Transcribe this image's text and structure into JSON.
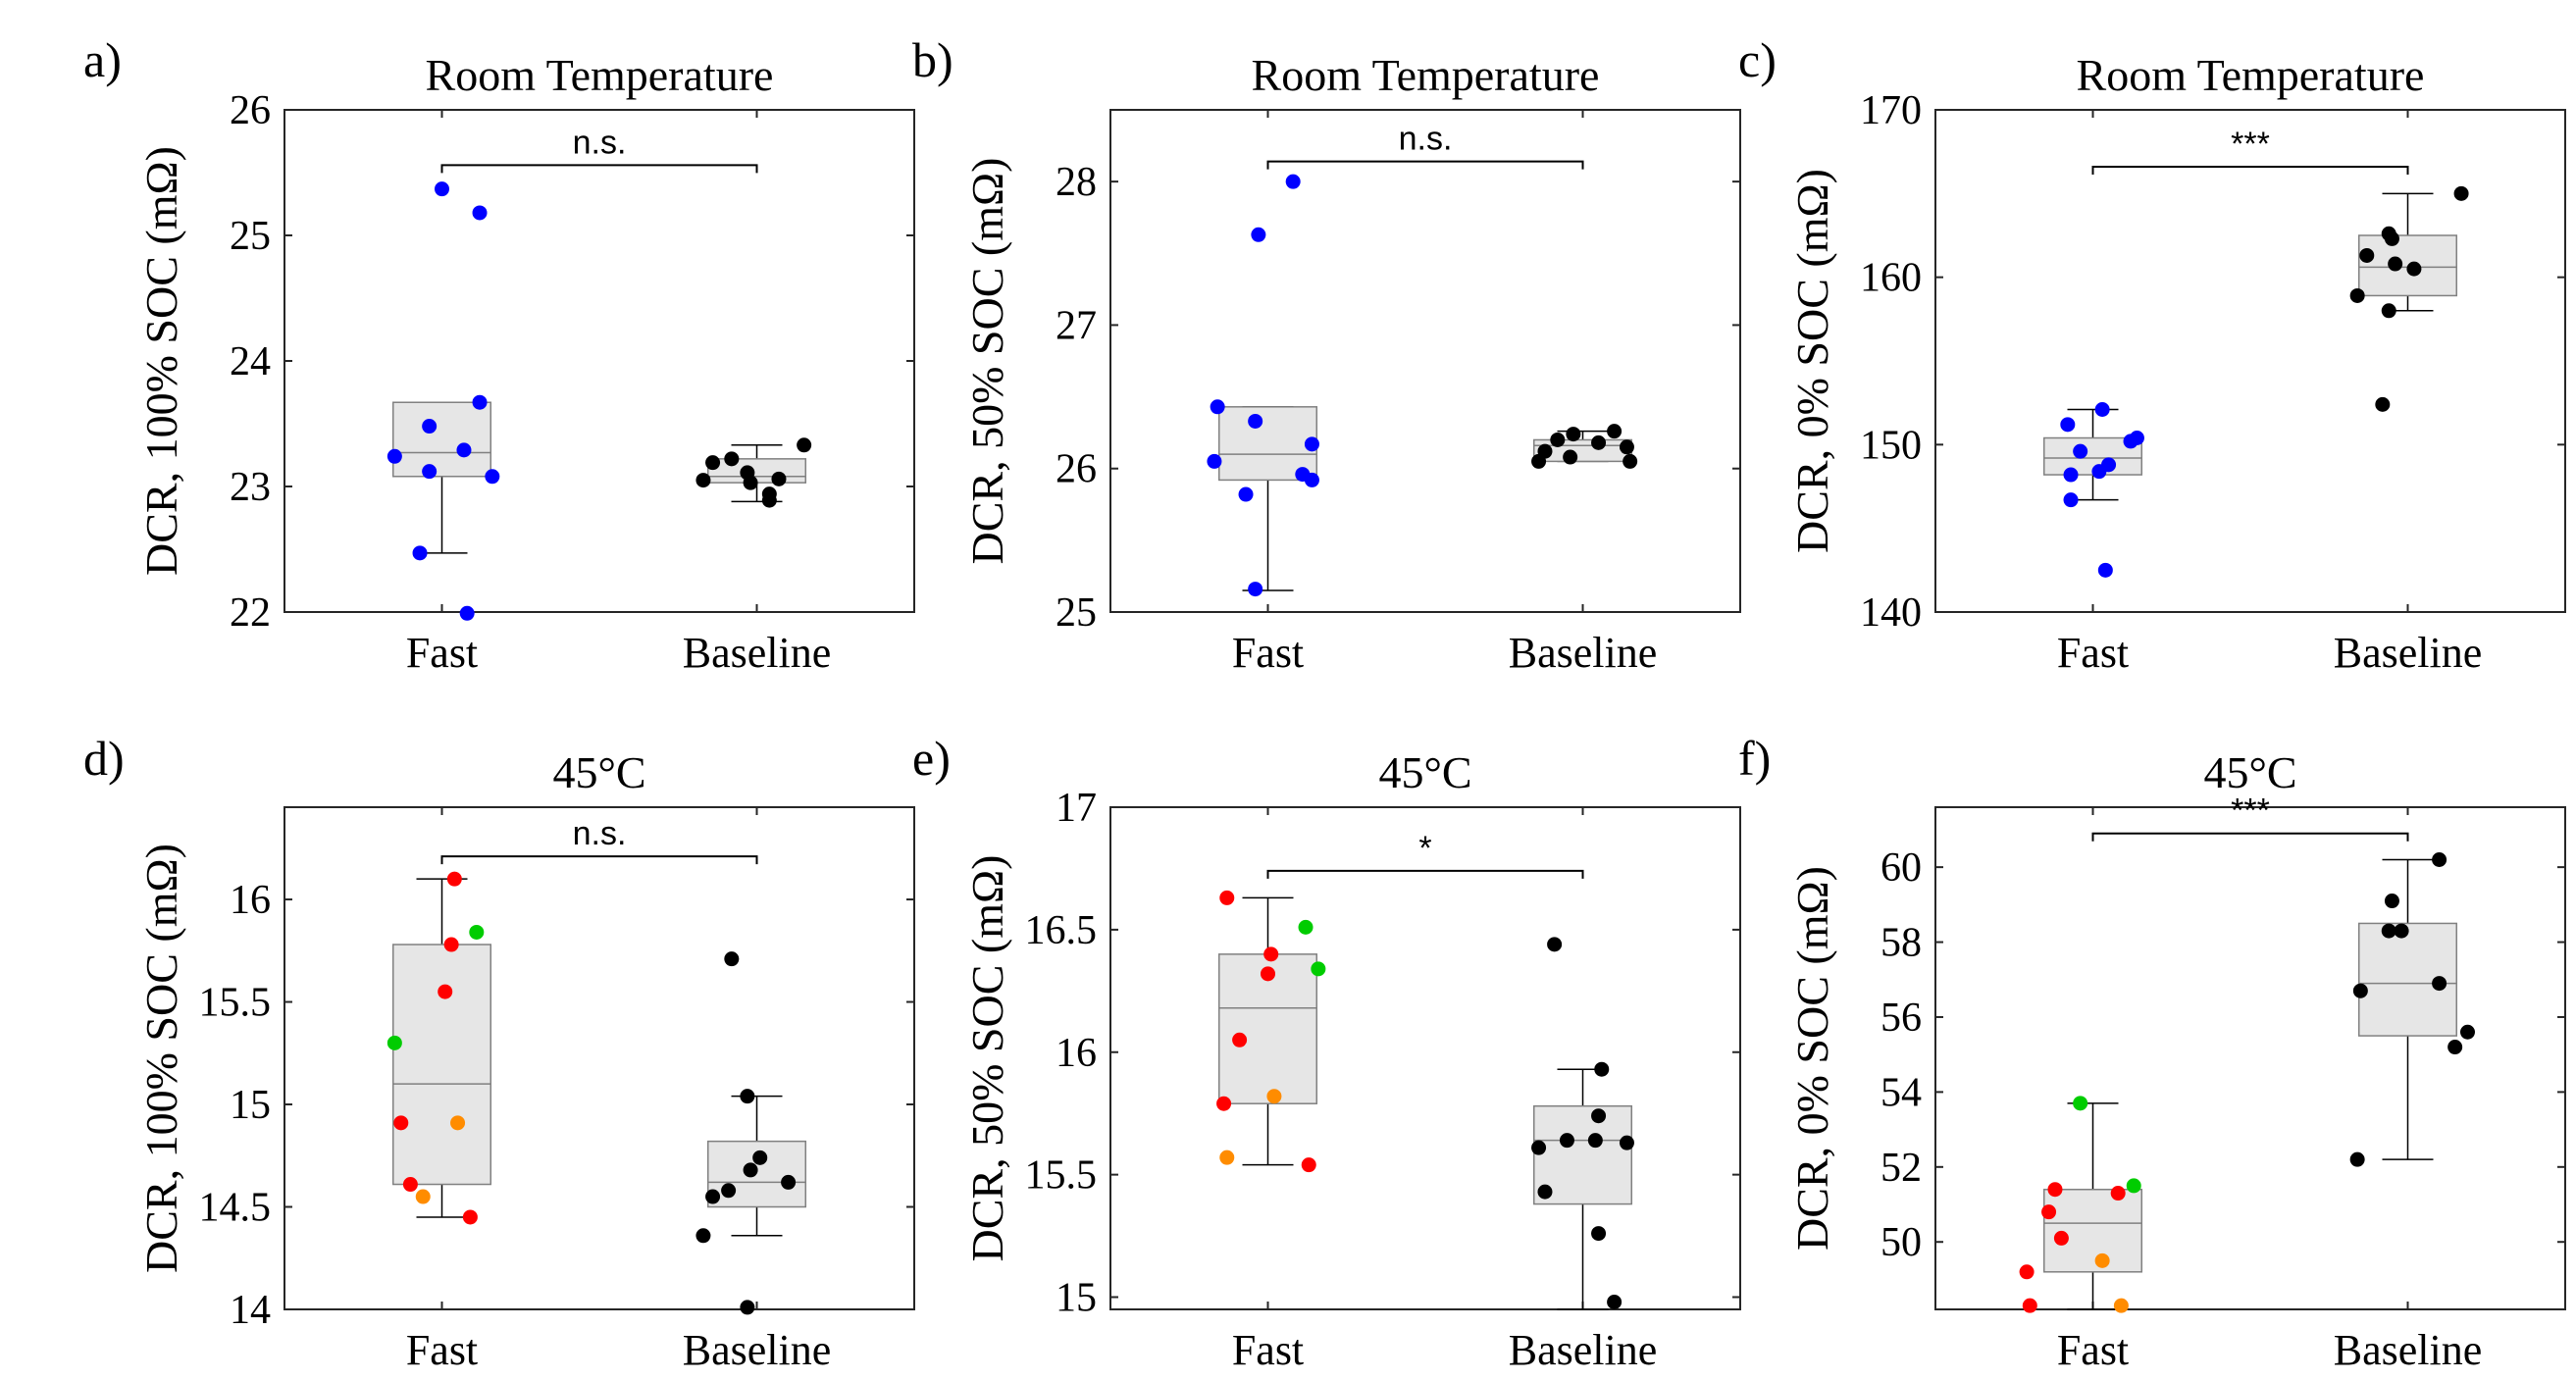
{
  "figure": {
    "colors": {
      "fast_room": "#0000ff",
      "baseline": "#000000",
      "fast_45_red": "#ff0000",
      "fast_45_green": "#00cc00",
      "fast_45_orange": "#ff8c00",
      "box_fill": "#e6e6e6",
      "box_edge": "#808080"
    }
  },
  "chart_data": [
    {
      "panel_label": "a)",
      "type": "box",
      "title": "Room Temperature",
      "ylabel": "DCR, 100% SOC (mΩ)",
      "categories": [
        "Fast",
        "Baseline"
      ],
      "ylim": [
        22,
        26
      ],
      "yticks": [
        22,
        23,
        24,
        25,
        26
      ],
      "significance": "n.s.",
      "sig_level": 25.56,
      "groups": [
        {
          "category": "Fast",
          "box": {
            "q1": 23.08,
            "median": 23.27,
            "q3": 23.67,
            "whisker_low": 22.47,
            "whisker_high": 23.67
          },
          "points": [
            {
              "y": 25.37,
              "c": "blue",
              "dx": 0.0
            },
            {
              "y": 25.18,
              "c": "blue",
              "dx": 0.12
            },
            {
              "y": 23.67,
              "c": "blue",
              "dx": 0.12
            },
            {
              "y": 23.48,
              "c": "blue",
              "dx": -0.04
            },
            {
              "y": 23.29,
              "c": "blue",
              "dx": 0.07
            },
            {
              "y": 23.24,
              "c": "blue",
              "dx": -0.15
            },
            {
              "y": 23.12,
              "c": "blue",
              "dx": -0.04
            },
            {
              "y": 23.08,
              "c": "blue",
              "dx": 0.16
            },
            {
              "y": 22.47,
              "c": "blue",
              "dx": -0.07
            },
            {
              "y": 21.99,
              "c": "blue",
              "dx": 0.08
            }
          ]
        },
        {
          "category": "Baseline",
          "box": {
            "q1": 23.03,
            "median": 23.08,
            "q3": 23.22,
            "whisker_low": 22.88,
            "whisker_high": 23.33
          },
          "points": [
            {
              "y": 23.33,
              "c": "black",
              "dx": 0.15
            },
            {
              "y": 23.22,
              "c": "black",
              "dx": -0.08
            },
            {
              "y": 23.19,
              "c": "black",
              "dx": -0.14
            },
            {
              "y": 23.11,
              "c": "black",
              "dx": -0.03
            },
            {
              "y": 23.06,
              "c": "black",
              "dx": 0.07
            },
            {
              "y": 23.05,
              "c": "black",
              "dx": -0.17
            },
            {
              "y": 23.03,
              "c": "black",
              "dx": -0.02
            },
            {
              "y": 22.94,
              "c": "black",
              "dx": 0.04
            },
            {
              "y": 22.89,
              "c": "black",
              "dx": 0.04
            }
          ]
        }
      ]
    },
    {
      "panel_label": "b)",
      "type": "box",
      "title": "Room Temperature",
      "ylabel": "DCR, 50% SOC (mΩ)",
      "categories": [
        "Fast",
        "Baseline"
      ],
      "ylim": [
        25,
        28.5
      ],
      "yticks": [
        25,
        26,
        27,
        28
      ],
      "significance": "n.s.",
      "sig_level": 28.14,
      "groups": [
        {
          "category": "Fast",
          "box": {
            "q1": 25.92,
            "median": 26.1,
            "q3": 26.43,
            "whisker_low": 25.15,
            "whisker_high": 26.43
          },
          "points": [
            {
              "y": 28.0,
              "c": "blue",
              "dx": 0.08
            },
            {
              "y": 27.63,
              "c": "blue",
              "dx": -0.03
            },
            {
              "y": 26.43,
              "c": "blue",
              "dx": -0.16
            },
            {
              "y": 26.33,
              "c": "blue",
              "dx": -0.04
            },
            {
              "y": 26.17,
              "c": "blue",
              "dx": 0.14
            },
            {
              "y": 26.05,
              "c": "blue",
              "dx": -0.17
            },
            {
              "y": 25.96,
              "c": "blue",
              "dx": 0.11
            },
            {
              "y": 25.92,
              "c": "blue",
              "dx": 0.14
            },
            {
              "y": 25.82,
              "c": "blue",
              "dx": -0.07
            },
            {
              "y": 25.16,
              "c": "blue",
              "dx": -0.04
            }
          ]
        },
        {
          "category": "Baseline",
          "box": {
            "q1": 26.05,
            "median": 26.16,
            "q3": 26.2,
            "whisker_low": 26.05,
            "whisker_high": 26.26
          },
          "points": [
            {
              "y": 26.26,
              "c": "black",
              "dx": 0.1
            },
            {
              "y": 26.24,
              "c": "black",
              "dx": -0.03
            },
            {
              "y": 26.2,
              "c": "black",
              "dx": -0.08
            },
            {
              "y": 26.18,
              "c": "black",
              "dx": 0.05
            },
            {
              "y": 26.15,
              "c": "black",
              "dx": 0.14
            },
            {
              "y": 26.12,
              "c": "black",
              "dx": -0.12
            },
            {
              "y": 26.08,
              "c": "black",
              "dx": -0.04
            },
            {
              "y": 26.05,
              "c": "black",
              "dx": -0.14
            },
            {
              "y": 26.05,
              "c": "black",
              "dx": 0.15
            }
          ]
        }
      ]
    },
    {
      "panel_label": "c)",
      "type": "box",
      "title": "Room Temperature",
      "ylabel": "DCR, 0% SOC (mΩ)",
      "categories": [
        "Fast",
        "Baseline"
      ],
      "ylim": [
        140,
        170
      ],
      "yticks": [
        140,
        150,
        160,
        170
      ],
      "significance": "***",
      "sig_level": 166.6,
      "groups": [
        {
          "category": "Fast",
          "box": {
            "q1": 148.2,
            "median": 149.2,
            "q3": 150.4,
            "whisker_low": 146.7,
            "whisker_high": 152.1
          },
          "points": [
            {
              "y": 152.1,
              "c": "blue",
              "dx": 0.03
            },
            {
              "y": 151.2,
              "c": "blue",
              "dx": -0.08
            },
            {
              "y": 150.4,
              "c": "blue",
              "dx": 0.14
            },
            {
              "y": 150.2,
              "c": "blue",
              "dx": 0.12
            },
            {
              "y": 149.6,
              "c": "blue",
              "dx": -0.04
            },
            {
              "y": 148.8,
              "c": "blue",
              "dx": 0.05
            },
            {
              "y": 148.4,
              "c": "blue",
              "dx": 0.02
            },
            {
              "y": 148.2,
              "c": "blue",
              "dx": -0.07
            },
            {
              "y": 146.7,
              "c": "blue",
              "dx": -0.07
            },
            {
              "y": 142.5,
              "c": "blue",
              "dx": 0.04
            }
          ]
        },
        {
          "category": "Baseline",
          "box": {
            "q1": 158.9,
            "median": 160.6,
            "q3": 162.5,
            "whisker_low": 158.0,
            "whisker_high": 165.0
          },
          "points": [
            {
              "y": 165.0,
              "c": "black",
              "dx": 0.17
            },
            {
              "y": 162.6,
              "c": "black",
              "dx": -0.06
            },
            {
              "y": 162.3,
              "c": "black",
              "dx": -0.05
            },
            {
              "y": 161.3,
              "c": "black",
              "dx": -0.13
            },
            {
              "y": 160.8,
              "c": "black",
              "dx": -0.04
            },
            {
              "y": 160.5,
              "c": "black",
              "dx": 0.02
            },
            {
              "y": 158.9,
              "c": "black",
              "dx": -0.16
            },
            {
              "y": 158.0,
              "c": "black",
              "dx": -0.06
            },
            {
              "y": 152.4,
              "c": "black",
              "dx": -0.08
            }
          ]
        }
      ]
    },
    {
      "panel_label": "d)",
      "type": "box",
      "title": "45°C",
      "ylabel": "DCR, 100% SOC (mΩ)",
      "categories": [
        "Fast",
        "Baseline"
      ],
      "ylim": [
        14,
        16.45
      ],
      "yticks": [
        14,
        14.5,
        15,
        15.5,
        16
      ],
      "significance": "n.s.",
      "sig_level": 16.21,
      "groups": [
        {
          "category": "Fast",
          "box": {
            "q1": 14.61,
            "median": 15.1,
            "q3": 15.78,
            "whisker_low": 14.45,
            "whisker_high": 16.1
          },
          "points": [
            {
              "y": 16.1,
              "c": "red",
              "dx": 0.04
            },
            {
              "y": 15.84,
              "c": "green",
              "dx": 0.11
            },
            {
              "y": 15.78,
              "c": "red",
              "dx": 0.03
            },
            {
              "y": 15.55,
              "c": "red",
              "dx": 0.01
            },
            {
              "y": 15.3,
              "c": "green",
              "dx": -0.15
            },
            {
              "y": 14.91,
              "c": "red",
              "dx": -0.13
            },
            {
              "y": 14.91,
              "c": "orange",
              "dx": 0.05
            },
            {
              "y": 14.61,
              "c": "red",
              "dx": -0.1
            },
            {
              "y": 14.55,
              "c": "orange",
              "dx": -0.06
            },
            {
              "y": 14.45,
              "c": "red",
              "dx": 0.09
            }
          ]
        },
        {
          "category": "Baseline",
          "box": {
            "q1": 14.5,
            "median": 14.62,
            "q3": 14.82,
            "whisker_low": 14.36,
            "whisker_high": 15.04
          },
          "points": [
            {
              "y": 15.71,
              "c": "black",
              "dx": -0.08
            },
            {
              "y": 15.04,
              "c": "black",
              "dx": -0.03
            },
            {
              "y": 14.74,
              "c": "black",
              "dx": 0.01
            },
            {
              "y": 14.68,
              "c": "black",
              "dx": -0.02
            },
            {
              "y": 14.62,
              "c": "black",
              "dx": 0.1
            },
            {
              "y": 14.58,
              "c": "black",
              "dx": -0.09
            },
            {
              "y": 14.55,
              "c": "black",
              "dx": -0.14
            },
            {
              "y": 14.36,
              "c": "black",
              "dx": -0.17
            },
            {
              "y": 14.01,
              "c": "black",
              "dx": -0.03
            }
          ]
        }
      ]
    },
    {
      "panel_label": "e)",
      "type": "box",
      "title": "45°C",
      "ylabel": "DCR, 50% SOC (mΩ)",
      "categories": [
        "Fast",
        "Baseline"
      ],
      "ylim": [
        14.95,
        17
      ],
      "yticks": [
        15,
        15.5,
        16,
        16.5,
        17
      ],
      "significance": "*",
      "sig_level": 16.74,
      "groups": [
        {
          "category": "Fast",
          "box": {
            "q1": 15.79,
            "median": 16.18,
            "q3": 16.4,
            "whisker_low": 15.54,
            "whisker_high": 16.63
          },
          "points": [
            {
              "y": 16.63,
              "c": "red",
              "dx": -0.13
            },
            {
              "y": 16.51,
              "c": "green",
              "dx": 0.12
            },
            {
              "y": 16.4,
              "c": "red",
              "dx": 0.01
            },
            {
              "y": 16.34,
              "c": "green",
              "dx": 0.16
            },
            {
              "y": 16.32,
              "c": "red",
              "dx": 0.0
            },
            {
              "y": 16.05,
              "c": "red",
              "dx": -0.09
            },
            {
              "y": 15.82,
              "c": "orange",
              "dx": 0.02
            },
            {
              "y": 15.79,
              "c": "red",
              "dx": -0.14
            },
            {
              "y": 15.57,
              "c": "orange",
              "dx": -0.13
            },
            {
              "y": 15.54,
              "c": "red",
              "dx": 0.13
            }
          ]
        },
        {
          "category": "Baseline",
          "box": {
            "q1": 15.38,
            "median": 15.64,
            "q3": 15.78,
            "whisker_low": 14.95,
            "whisker_high": 15.93
          },
          "points": [
            {
              "y": 16.44,
              "c": "black",
              "dx": -0.09
            },
            {
              "y": 15.93,
              "c": "black",
              "dx": 0.06
            },
            {
              "y": 15.74,
              "c": "black",
              "dx": 0.05
            },
            {
              "y": 15.64,
              "c": "black",
              "dx": -0.05
            },
            {
              "y": 15.64,
              "c": "black",
              "dx": 0.04
            },
            {
              "y": 15.63,
              "c": "black",
              "dx": 0.14
            },
            {
              "y": 15.61,
              "c": "black",
              "dx": -0.14
            },
            {
              "y": 15.43,
              "c": "black",
              "dx": -0.12
            },
            {
              "y": 15.26,
              "c": "black",
              "dx": 0.05
            },
            {
              "y": 14.98,
              "c": "black",
              "dx": 0.1
            }
          ]
        }
      ]
    },
    {
      "panel_label": "f)",
      "type": "box",
      "title": "45°C",
      "ylabel": "DCR, 0% SOC (mΩ)",
      "categories": [
        "Fast",
        "Baseline"
      ],
      "ylim": [
        48.2,
        61.6
      ],
      "yticks": [
        50,
        52,
        54,
        56,
        58,
        60
      ],
      "significance": "***",
      "sig_level": 60.9,
      "groups": [
        {
          "category": "Fast",
          "box": {
            "q1": 49.2,
            "median": 50.5,
            "q3": 51.4,
            "whisker_low": 48.2,
            "whisker_high": 53.7
          },
          "points": [
            {
              "y": 53.7,
              "c": "green",
              "dx": -0.04
            },
            {
              "y": 51.5,
              "c": "green",
              "dx": 0.13
            },
            {
              "y": 51.4,
              "c": "red",
              "dx": -0.12
            },
            {
              "y": 51.3,
              "c": "red",
              "dx": 0.08
            },
            {
              "y": 50.8,
              "c": "red",
              "dx": -0.14
            },
            {
              "y": 50.1,
              "c": "red",
              "dx": -0.1
            },
            {
              "y": 49.5,
              "c": "orange",
              "dx": 0.03
            },
            {
              "y": 49.2,
              "c": "red",
              "dx": -0.21
            },
            {
              "y": 48.3,
              "c": "red",
              "dx": -0.2
            },
            {
              "y": 48.3,
              "c": "orange",
              "dx": 0.09
            }
          ]
        },
        {
          "category": "Baseline",
          "box": {
            "q1": 55.5,
            "median": 56.9,
            "q3": 58.5,
            "whisker_low": 52.2,
            "whisker_high": 60.2
          },
          "points": [
            {
              "y": 60.2,
              "c": "black",
              "dx": 0.1
            },
            {
              "y": 59.1,
              "c": "black",
              "dx": -0.05
            },
            {
              "y": 58.3,
              "c": "black",
              "dx": -0.02
            },
            {
              "y": 58.3,
              "c": "black",
              "dx": -0.06
            },
            {
              "y": 56.9,
              "c": "black",
              "dx": 0.1
            },
            {
              "y": 56.7,
              "c": "black",
              "dx": -0.15
            },
            {
              "y": 55.6,
              "c": "black",
              "dx": 0.19
            },
            {
              "y": 55.2,
              "c": "black",
              "dx": 0.15
            },
            {
              "y": 52.2,
              "c": "black",
              "dx": -0.16
            }
          ]
        }
      ]
    }
  ]
}
